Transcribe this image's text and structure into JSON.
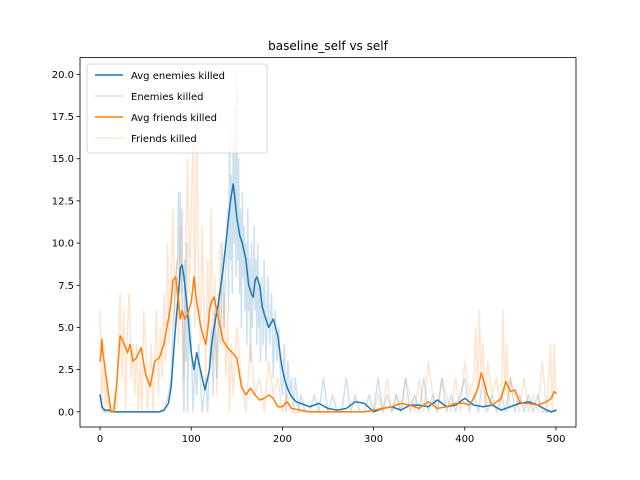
{
  "chart_data": {
    "type": "line",
    "title": "baseline_self vs self",
    "xlabel": "",
    "ylabel": "",
    "xlim": [
      -22,
      522
    ],
    "ylim": [
      -0.9,
      21.0
    ],
    "xticks": [
      0,
      100,
      200,
      300,
      400,
      500
    ],
    "xtick_labels": [
      "0",
      "100",
      "200",
      "300",
      "400",
      "500"
    ],
    "yticks": [
      0,
      2.5,
      5,
      7.5,
      10,
      12.5,
      15,
      17.5,
      20
    ],
    "ytick_labels": [
      "0.0",
      "2.5",
      "5.0",
      "7.5",
      "10.0",
      "12.5",
      "15.0",
      "17.5",
      "20.0"
    ],
    "grid": false,
    "legend_position": "top-left",
    "series": [
      {
        "name": "Avg enemies killed",
        "color": "#1f77b4",
        "opacity": 1,
        "width": 1.5,
        "x": [
          0,
          2,
          5,
          10,
          15,
          20,
          30,
          40,
          50,
          60,
          65,
          70,
          75,
          78,
          82,
          86,
          88,
          90,
          92,
          95,
          100,
          103,
          106,
          110,
          115,
          118,
          120,
          122,
          125,
          130,
          135,
          140,
          143,
          146,
          148,
          150,
          153,
          156,
          160,
          163,
          166,
          168,
          170,
          172,
          175,
          178,
          180,
          185,
          190,
          195,
          198,
          200,
          203,
          207,
          210,
          215,
          220,
          230,
          240,
          250,
          260,
          270,
          280,
          290,
          300,
          310,
          320,
          330,
          340,
          350,
          360,
          370,
          380,
          390,
          400,
          410,
          420,
          430,
          440,
          450,
          460,
          470,
          480,
          490,
          495,
          500
        ],
        "y": [
          1.0,
          0.3,
          0.1,
          0.1,
          0.0,
          0.0,
          0.0,
          0.0,
          0.0,
          0.0,
          0.0,
          0.1,
          0.5,
          1.5,
          4.5,
          7.0,
          8.5,
          8.7,
          8.0,
          6.5,
          3.5,
          2.5,
          3.5,
          2.5,
          1.3,
          2.0,
          2.5,
          3.8,
          5.0,
          6.5,
          8.5,
          11.0,
          12.5,
          13.5,
          12.6,
          11.5,
          10.5,
          10.0,
          9.0,
          7.5,
          7.0,
          6.8,
          7.8,
          8.0,
          7.5,
          6.2,
          5.8,
          5.0,
          5.5,
          4.5,
          3.2,
          2.5,
          1.8,
          1.2,
          0.9,
          0.6,
          0.5,
          0.3,
          0.5,
          0.2,
          0.1,
          0.2,
          0.6,
          0.5,
          0.0,
          0.2,
          0.3,
          0.1,
          0.4,
          0.4,
          0.3,
          0.7,
          0.3,
          0.4,
          0.8,
          0.4,
          0.3,
          0.4,
          0.1,
          0.3,
          0.5,
          0.6,
          0.4,
          0.1,
          0.0,
          0.1
        ]
      },
      {
        "name": "Enemies killed",
        "color": "#1f77b4",
        "opacity": 0.22,
        "width": 1.5,
        "x": [
          0,
          4,
          8,
          12,
          20,
          40,
          60,
          70,
          75,
          78,
          80,
          83,
          85,
          86,
          87,
          88,
          89,
          90,
          91,
          92,
          93,
          94,
          95,
          96,
          98,
          100,
          102,
          104,
          106,
          108,
          110,
          112,
          114,
          116,
          118,
          120,
          122,
          124,
          126,
          128,
          130,
          132,
          134,
          136,
          138,
          140,
          141,
          142,
          143,
          144,
          145,
          146,
          147,
          148,
          149,
          150,
          151,
          152,
          153,
          154,
          155,
          156,
          157,
          158,
          159,
          160,
          161,
          162,
          163,
          164,
          165,
          166,
          167,
          168,
          169,
          170,
          171,
          172,
          173,
          174,
          175,
          176,
          177,
          178,
          179,
          180,
          182,
          184,
          186,
          188,
          190,
          192,
          194,
          196,
          198,
          200,
          202,
          204,
          206,
          208,
          210,
          212,
          214,
          216,
          218,
          220,
          225,
          230,
          235,
          240,
          245,
          250,
          255,
          260,
          265,
          270,
          275,
          280,
          285,
          290,
          295,
          300,
          305,
          310,
          315,
          320,
          325,
          330,
          335,
          340,
          345,
          350,
          355,
          360,
          365,
          370,
          375,
          380,
          385,
          390,
          395,
          400,
          405,
          410,
          415,
          420,
          425,
          430,
          435,
          440,
          445,
          450,
          455,
          460,
          465,
          470,
          475,
          480,
          485,
          490,
          495,
          500
        ],
        "y": [
          1,
          0,
          0,
          0,
          0,
          0,
          0,
          0,
          1,
          2,
          5,
          8,
          9,
          13,
          8,
          13,
          7,
          12,
          2,
          0,
          9,
          3,
          10,
          0,
          6,
          4,
          0,
          3,
          1,
          4,
          2,
          0,
          1,
          2,
          0,
          3,
          5,
          1,
          6,
          2,
          7,
          4,
          10,
          5,
          9,
          12,
          6,
          17,
          9,
          14,
          7,
          16,
          10,
          18,
          8,
          20,
          9,
          15,
          7,
          12,
          5,
          13,
          8,
          11,
          6,
          10,
          4,
          12,
          6,
          9,
          3,
          10,
          5,
          8,
          11,
          6,
          9,
          4,
          10,
          5,
          7,
          3,
          8,
          6,
          4,
          9,
          3,
          8,
          4,
          7,
          2,
          6,
          3,
          5,
          2,
          1,
          4,
          0,
          3,
          1,
          2,
          0,
          2,
          1,
          0,
          1,
          0,
          0,
          1,
          0,
          2,
          0,
          1,
          0,
          0,
          2,
          0,
          1,
          0,
          0,
          1,
          0,
          2,
          0,
          1,
          0,
          1,
          0,
          2,
          0,
          1,
          0,
          2,
          0,
          1,
          0,
          2,
          0,
          1,
          0,
          1,
          2,
          0,
          1,
          0,
          2,
          0,
          1,
          0,
          1,
          0,
          2,
          0,
          1,
          0,
          1,
          0,
          1,
          0,
          0,
          0,
          0
        ]
      },
      {
        "name": "Avg friends killed",
        "color": "#ff7f0e",
        "opacity": 1,
        "width": 1.5,
        "x": [
          0,
          1,
          2,
          3,
          5,
          8,
          10,
          12,
          15,
          18,
          20,
          22,
          25,
          28,
          30,
          33,
          36,
          40,
          45,
          50,
          55,
          60,
          65,
          70,
          75,
          78,
          80,
          83,
          86,
          88,
          90,
          93,
          96,
          100,
          103,
          106,
          110,
          113,
          116,
          118,
          120,
          122,
          125,
          128,
          130,
          135,
          140,
          145,
          150,
          155,
          160,
          165,
          170,
          175,
          180,
          185,
          190,
          195,
          200,
          205,
          210,
          220,
          230,
          240,
          250,
          260,
          270,
          280,
          290,
          300,
          310,
          320,
          330,
          340,
          350,
          360,
          370,
          380,
          390,
          400,
          405,
          410,
          415,
          418,
          420,
          425,
          430,
          440,
          445,
          450,
          455,
          460,
          465,
          470,
          480,
          490,
          495,
          498,
          500
        ],
        "y": [
          3.0,
          3.5,
          4.3,
          3.5,
          2.8,
          1.5,
          0.8,
          0.0,
          0.0,
          1.5,
          3.0,
          4.5,
          4.2,
          3.8,
          3.5,
          4.0,
          3.0,
          3.2,
          3.8,
          2.2,
          1.5,
          3.0,
          3.2,
          4.0,
          5.5,
          6.5,
          7.8,
          8.0,
          6.5,
          5.5,
          6.0,
          5.5,
          5.8,
          6.5,
          8.0,
          6.5,
          5.2,
          4.5,
          4.0,
          4.8,
          6.0,
          6.5,
          6.8,
          6.0,
          5.5,
          4.2,
          3.8,
          3.5,
          3.2,
          1.5,
          1.0,
          1.4,
          1.0,
          0.7,
          0.8,
          1.0,
          0.8,
          0.3,
          0.3,
          0.6,
          0.2,
          0.1,
          0.0,
          0.0,
          0.0,
          0.0,
          0.0,
          0.0,
          0.0,
          0.1,
          0.2,
          0.3,
          0.5,
          0.4,
          0.2,
          0.6,
          0.2,
          0.3,
          0.5,
          0.5,
          0.4,
          0.8,
          1.5,
          2.3,
          2.0,
          1.0,
          0.4,
          0.8,
          1.8,
          1.2,
          1.3,
          0.6,
          0.5,
          0.5,
          0.4,
          0.6,
          0.8,
          1.2,
          1.1
        ]
      },
      {
        "name": "Friends killed",
        "color": "#ff7f0e",
        "opacity": 0.2,
        "width": 1.5,
        "x": [
          0,
          2,
          4,
          6,
          8,
          10,
          12,
          14,
          16,
          18,
          20,
          22,
          24,
          26,
          28,
          30,
          32,
          34,
          36,
          38,
          40,
          42,
          44,
          46,
          48,
          50,
          52,
          54,
          56,
          58,
          60,
          62,
          64,
          66,
          68,
          70,
          72,
          74,
          76,
          78,
          80,
          82,
          84,
          86,
          88,
          90,
          92,
          94,
          96,
          98,
          100,
          102,
          104,
          106,
          108,
          110,
          112,
          114,
          116,
          118,
          120,
          122,
          124,
          126,
          128,
          130,
          132,
          134,
          136,
          138,
          140,
          142,
          144,
          146,
          148,
          150,
          155,
          160,
          165,
          170,
          175,
          180,
          185,
          190,
          195,
          200,
          205,
          210,
          215,
          220,
          230,
          240,
          250,
          260,
          270,
          280,
          290,
          300,
          305,
          310,
          315,
          320,
          325,
          330,
          335,
          340,
          345,
          350,
          355,
          360,
          365,
          370,
          375,
          380,
          385,
          390,
          395,
          400,
          405,
          410,
          412,
          414,
          416,
          418,
          420,
          422,
          425,
          430,
          435,
          440,
          442,
          444,
          446,
          448,
          450,
          455,
          460,
          465,
          470,
          475,
          480,
          485,
          490,
          494,
          496,
          498,
          500
        ],
        "y": [
          6,
          0,
          4,
          0,
          2,
          0,
          0,
          0,
          1,
          0,
          4,
          7,
          2,
          6,
          0,
          5,
          7,
          2,
          4,
          1,
          4,
          0,
          3,
          0,
          6,
          4,
          0,
          2,
          4,
          0,
          3,
          6,
          1,
          5,
          2,
          7,
          3,
          10,
          4,
          8,
          12,
          5,
          9,
          4,
          11,
          6,
          2,
          10,
          15,
          7,
          12,
          16,
          5,
          18,
          8,
          4,
          11,
          6,
          2,
          9,
          5,
          12,
          3,
          8,
          1,
          5,
          10,
          4,
          7,
          2,
          6,
          0,
          4,
          1,
          3,
          5,
          2,
          0,
          4,
          1,
          2,
          0,
          3,
          1,
          2,
          0,
          1,
          0,
          0,
          0,
          0,
          0,
          0,
          0,
          0,
          0,
          0,
          0,
          1,
          0,
          2,
          0,
          1,
          0,
          2,
          1,
          0,
          2,
          0,
          3,
          1,
          0,
          2,
          1,
          0,
          2,
          0,
          3,
          1,
          2,
          5,
          1,
          6,
          2,
          4,
          0,
          3,
          1,
          2,
          0,
          6,
          1,
          4,
          0,
          2,
          1,
          0,
          2,
          0,
          1,
          0,
          3,
          0,
          4,
          0,
          4,
          1
        ]
      }
    ]
  }
}
